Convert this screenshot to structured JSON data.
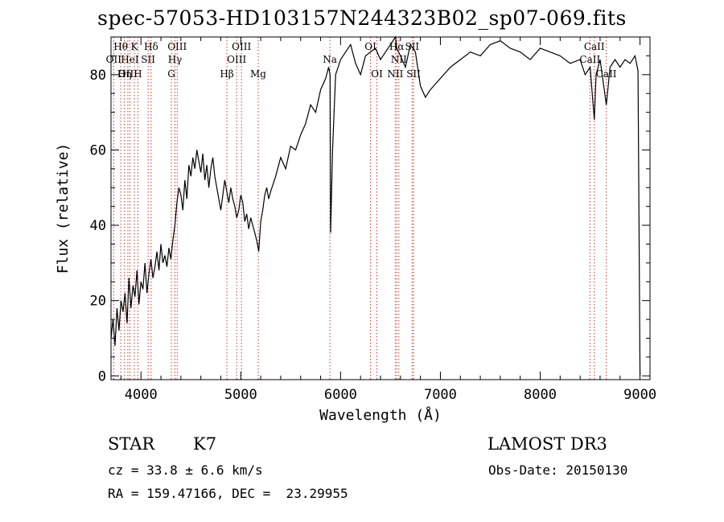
{
  "title": "spec-57053-HD103157N244323B02_sp07-069.fits",
  "info": {
    "class_label": "STAR",
    "subclass": "K7",
    "survey": "LAMOST DR3",
    "cz": "cz = 33.8 ± 6.6 km/s",
    "obs_date": "Obs-Date: 20150130",
    "coords": "RA = 159.47166, DEC =  23.29955"
  },
  "chart_data": {
    "type": "line",
    "title": "spec-57053-HD103157N244323B02_sp07-069.fits",
    "xlabel": "Wavelength (Å)",
    "ylabel": "Flux (relative)",
    "xlim": [
      3700,
      9100
    ],
    "ylim": [
      -1,
      90
    ],
    "xticks": [
      4000,
      5000,
      6000,
      7000,
      8000,
      9000
    ],
    "yticks": [
      0,
      20,
      40,
      60,
      80
    ],
    "series": [
      {
        "name": "flux",
        "x": [
          3700,
          3720,
          3740,
          3760,
          3780,
          3800,
          3820,
          3840,
          3860,
          3880,
          3900,
          3920,
          3940,
          3960,
          3980,
          4000,
          4020,
          4040,
          4060,
          4080,
          4100,
          4120,
          4140,
          4160,
          4180,
          4200,
          4220,
          4240,
          4260,
          4280,
          4300,
          4320,
          4340,
          4360,
          4380,
          4400,
          4420,
          4440,
          4460,
          4480,
          4500,
          4520,
          4540,
          4560,
          4580,
          4600,
          4620,
          4640,
          4660,
          4680,
          4700,
          4720,
          4740,
          4760,
          4780,
          4800,
          4820,
          4840,
          4860,
          4880,
          4900,
          4920,
          4940,
          4960,
          4980,
          5000,
          5020,
          5040,
          5060,
          5080,
          5100,
          5120,
          5140,
          5160,
          5180,
          5200,
          5220,
          5240,
          5260,
          5280,
          5300,
          5350,
          5400,
          5450,
          5500,
          5550,
          5600,
          5650,
          5700,
          5750,
          5800,
          5850,
          5880,
          5895,
          5900,
          5920,
          5950,
          6000,
          6050,
          6100,
          6150,
          6200,
          6250,
          6300,
          6350,
          6400,
          6450,
          6500,
          6550,
          6563,
          6600,
          6650,
          6700,
          6750,
          6800,
          6850,
          6900,
          7000,
          7100,
          7200,
          7300,
          7400,
          7500,
          7600,
          7700,
          7800,
          7900,
          8000,
          8100,
          8200,
          8300,
          8400,
          8450,
          8500,
          8542,
          8560,
          8600,
          8662,
          8700,
          8750,
          8800,
          8850,
          8900,
          8950,
          8980,
          9000
        ],
        "values": [
          10,
          15,
          8,
          18,
          12,
          20,
          17,
          22,
          14,
          26,
          18,
          24,
          21,
          28,
          19,
          25,
          23,
          30,
          22,
          27,
          31,
          26,
          29,
          33,
          28,
          35,
          30,
          32,
          29,
          34,
          31,
          36,
          40,
          46,
          50,
          48,
          44,
          52,
          47,
          56,
          53,
          58,
          55,
          60,
          57,
          54,
          59,
          52,
          56,
          50,
          55,
          58,
          53,
          50,
          47,
          44,
          48,
          52,
          49,
          46,
          50,
          47,
          45,
          42,
          44,
          48,
          46,
          41,
          43,
          39,
          42,
          40,
          38,
          36,
          33,
          41,
          44,
          48,
          50,
          47,
          49,
          53,
          58,
          55,
          61,
          60,
          64,
          67,
          72,
          70,
          76,
          79,
          82,
          80,
          38,
          60,
          80,
          84,
          86,
          88,
          83,
          80,
          85,
          86,
          87,
          84,
          86,
          88,
          90,
          87,
          85,
          82,
          88,
          86,
          77,
          74,
          76,
          79,
          82,
          84,
          86,
          85,
          88,
          89,
          87,
          86,
          84,
          87,
          86,
          85,
          83,
          84,
          80,
          82,
          68,
          80,
          84,
          72,
          82,
          84,
          82,
          84,
          83,
          85,
          81,
          0
        ]
      }
    ],
    "line_labels": [
      {
        "name": "Hθ",
        "wavelength": 3798,
        "row": 1
      },
      {
        "name": "K",
        "wavelength": 3934,
        "row": 1
      },
      {
        "name": "Hδ",
        "wavelength": 4102,
        "row": 1
      },
      {
        "name": "OII",
        "wavelength": 3727,
        "row": 2
      },
      {
        "name": "HeI",
        "wavelength": 3889,
        "row": 2
      },
      {
        "name": "SII",
        "wavelength": 4072,
        "row": 2
      },
      {
        "name": "OIII",
        "wavelength": 4363,
        "row": 1
      },
      {
        "name": "Hγ",
        "wavelength": 4341,
        "row": 2
      },
      {
        "name": "OIII",
        "wavelength": 3869,
        "row": 3
      },
      {
        "name": "Hη",
        "wavelength": 3835,
        "row": 3
      },
      {
        "name": "H",
        "wavelength": 3969,
        "row": 3
      },
      {
        "name": "G",
        "wavelength": 4305,
        "row": 3
      },
      {
        "name": "OIII",
        "wavelength": 5007,
        "row": 1
      },
      {
        "name": "OIII",
        "wavelength": 4959,
        "row": 2
      },
      {
        "name": "Hβ",
        "wavelength": 4861,
        "row": 3
      },
      {
        "name": "Mg",
        "wavelength": 5175,
        "row": 3
      },
      {
        "name": "Na",
        "wavelength": 5893,
        "row": 2
      },
      {
        "name": "OI",
        "wavelength": 6300,
        "row": 1
      },
      {
        "name": "OI",
        "wavelength": 6364,
        "row": 3
      },
      {
        "name": "Hα",
        "wavelength": 6563,
        "row": 1
      },
      {
        "name": "SII",
        "wavelength": 6717,
        "row": 1
      },
      {
        "name": "NII",
        "wavelength": 6584,
        "row": 2
      },
      {
        "name": "NII",
        "wavelength": 6548,
        "row": 3
      },
      {
        "name": "SII",
        "wavelength": 6731,
        "row": 3
      },
      {
        "name": "CaII",
        "wavelength": 8542,
        "row": 1
      },
      {
        "name": "CaII",
        "wavelength": 8498,
        "row": 2
      },
      {
        "name": "CaII",
        "wavelength": 8662,
        "row": 3
      }
    ],
    "marker_lines": [
      3727,
      3798,
      3835,
      3869,
      3889,
      3934,
      3969,
      4072,
      4102,
      4305,
      4341,
      4363,
      4861,
      4959,
      5007,
      5175,
      5893,
      6300,
      6364,
      6548,
      6563,
      6584,
      6717,
      6731,
      8498,
      8542,
      8662
    ]
  }
}
